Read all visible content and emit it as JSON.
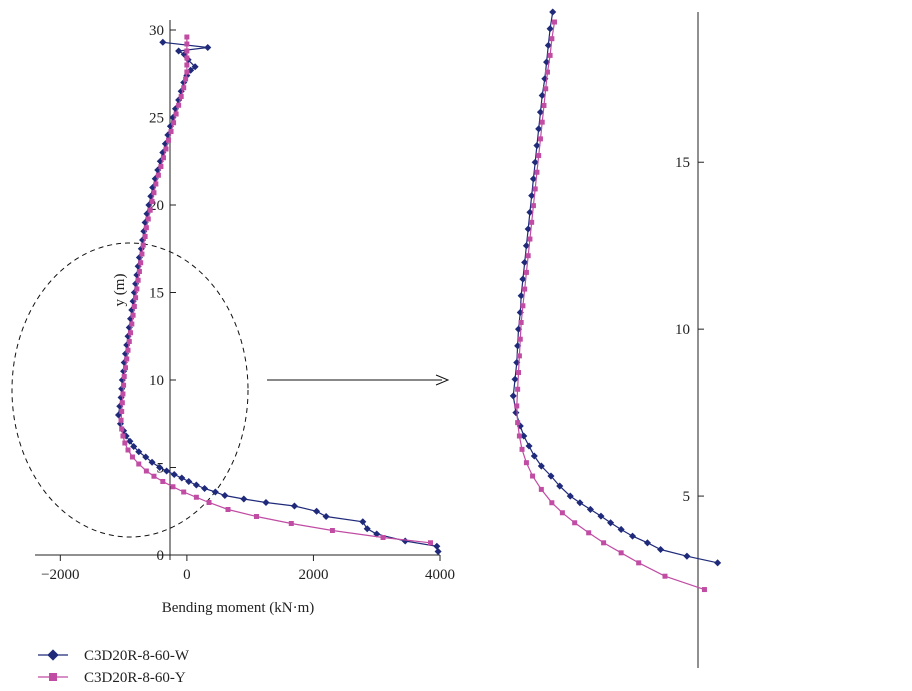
{
  "chart_data": [
    {
      "panel": "full",
      "type": "line",
      "xlabel": "Bending moment (kN·m)",
      "ylabel": "y (m)",
      "xlim": [
        -2400,
        4000
      ],
      "ylim": [
        0,
        30
      ],
      "xticks": [
        -2000,
        0,
        2000,
        4000
      ],
      "xtick_labels": [
        "−2000",
        "0",
        "2000",
        "4000"
      ],
      "yticks": [
        0,
        5,
        10,
        15,
        20,
        25,
        30
      ],
      "ytick_labels": [
        "0",
        "5",
        "10",
        "15",
        "20",
        "25",
        "30"
      ],
      "grid": false,
      "legend_position": "bottom-left",
      "annotation": "dashed ellipse marks the zoomed region, arrow points to the enlarged view",
      "series": [
        {
          "name": "C3D20R-8-60-W",
          "color": "#1f2a7a",
          "marker": "diamond",
          "points": [
            [
              3970,
              0.2
            ],
            [
              3950,
              0.5
            ],
            [
              3450,
              0.8
            ],
            [
              3000,
              1.2
            ],
            [
              2850,
              1.5
            ],
            [
              2780,
              1.9
            ],
            [
              2200,
              2.2
            ],
            [
              2050,
              2.5
            ],
            [
              1700,
              2.8
            ],
            [
              1250,
              3.0
            ],
            [
              900,
              3.2
            ],
            [
              600,
              3.4
            ],
            [
              450,
              3.6
            ],
            [
              280,
              3.8
            ],
            [
              150,
              4.0
            ],
            [
              30,
              4.2
            ],
            [
              -80,
              4.4
            ],
            [
              -200,
              4.6
            ],
            [
              -320,
              4.8
            ],
            [
              -430,
              5.0
            ],
            [
              -550,
              5.3
            ],
            [
              -650,
              5.6
            ],
            [
              -760,
              5.9
            ],
            [
              -840,
              6.2
            ],
            [
              -900,
              6.5
            ],
            [
              -960,
              6.8
            ],
            [
              -1000,
              7.1
            ],
            [
              -1050,
              7.5
            ],
            [
              -1080,
              8.0
            ],
            [
              -1060,
              8.5
            ],
            [
              -1040,
              9.0
            ],
            [
              -1030,
              9.5
            ],
            [
              -1020,
              10.0
            ],
            [
              -1000,
              10.5
            ],
            [
              -990,
              11.0
            ],
            [
              -970,
              11.5
            ],
            [
              -950,
              12.0
            ],
            [
              -930,
              12.5
            ],
            [
              -910,
              13.0
            ],
            [
              -890,
              13.5
            ],
            [
              -870,
              14.0
            ],
            [
              -850,
              14.5
            ],
            [
              -830,
              15.0
            ],
            [
              -810,
              15.5
            ],
            [
              -790,
              16.0
            ],
            [
              -770,
              16.5
            ],
            [
              -750,
              17.0
            ],
            [
              -720,
              17.5
            ],
            [
              -700,
              18.0
            ],
            [
              -680,
              18.5
            ],
            [
              -660,
              19.0
            ],
            [
              -630,
              19.5
            ],
            [
              -600,
              20.0
            ],
            [
              -570,
              20.5
            ],
            [
              -540,
              21.0
            ],
            [
              -500,
              21.5
            ],
            [
              -460,
              22.0
            ],
            [
              -420,
              22.5
            ],
            [
              -380,
              23.0
            ],
            [
              -340,
              23.5
            ],
            [
              -300,
              24.0
            ],
            [
              -260,
              24.5
            ],
            [
              -220,
              25.0
            ],
            [
              -180,
              25.5
            ],
            [
              -130,
              26.0
            ],
            [
              -90,
              26.5
            ],
            [
              -50,
              27.0
            ],
            [
              0,
              27.4
            ],
            [
              60,
              27.7
            ],
            [
              130,
              27.9
            ],
            [
              20,
              28.3
            ],
            [
              -40,
              28.6
            ],
            [
              -130,
              28.8
            ],
            [
              330,
              29.0
            ],
            [
              -380,
              29.3
            ]
          ]
        },
        {
          "name": "C3D20R-8-60-Y",
          "color": "#c04ca4",
          "marker": "square",
          "points": [
            [
              3850,
              0.7
            ],
            [
              3100,
              1.0
            ],
            [
              2300,
              1.4
            ],
            [
              1650,
              1.8
            ],
            [
              1100,
              2.2
            ],
            [
              650,
              2.6
            ],
            [
              350,
              3.0
            ],
            [
              150,
              3.3
            ],
            [
              -50,
              3.6
            ],
            [
              -220,
              3.9
            ],
            [
              -380,
              4.2
            ],
            [
              -520,
              4.5
            ],
            [
              -640,
              4.8
            ],
            [
              -760,
              5.2
            ],
            [
              -860,
              5.6
            ],
            [
              -930,
              6.0
            ],
            [
              -980,
              6.4
            ],
            [
              -1010,
              6.8
            ],
            [
              -1030,
              7.2
            ],
            [
              -1040,
              7.7
            ],
            [
              -1030,
              8.2
            ],
            [
              -1020,
              8.7
            ],
            [
              -1010,
              9.2
            ],
            [
              -1000,
              9.7
            ],
            [
              -990,
              10.2
            ],
            [
              -970,
              10.7
            ],
            [
              -950,
              11.2
            ],
            [
              -930,
              11.7
            ],
            [
              -910,
              12.2
            ],
            [
              -890,
              12.7
            ],
            [
              -870,
              13.2
            ],
            [
              -850,
              13.7
            ],
            [
              -830,
              14.2
            ],
            [
              -810,
              14.7
            ],
            [
              -790,
              15.2
            ],
            [
              -770,
              15.7
            ],
            [
              -750,
              16.2
            ],
            [
              -730,
              16.7
            ],
            [
              -710,
              17.2
            ],
            [
              -690,
              17.7
            ],
            [
              -660,
              18.2
            ],
            [
              -640,
              18.7
            ],
            [
              -610,
              19.2
            ],
            [
              -580,
              19.7
            ],
            [
              -550,
              20.2
            ],
            [
              -520,
              20.7
            ],
            [
              -490,
              21.2
            ],
            [
              -450,
              21.7
            ],
            [
              -410,
              22.2
            ],
            [
              -370,
              22.7
            ],
            [
              -330,
              23.2
            ],
            [
              -290,
              23.7
            ],
            [
              -250,
              24.2
            ],
            [
              -210,
              24.7
            ],
            [
              -170,
              25.2
            ],
            [
              -130,
              25.7
            ],
            [
              -90,
              26.2
            ],
            [
              -50,
              26.7
            ],
            [
              -20,
              27.2
            ],
            [
              0,
              27.6
            ],
            [
              0,
              28.0
            ],
            [
              0,
              28.4
            ],
            [
              0,
              28.8
            ],
            [
              0,
              29.2
            ],
            [
              0,
              29.6
            ]
          ]
        }
      ]
    },
    {
      "panel": "zoom",
      "type": "line",
      "xlabel": "",
      "ylabel": "",
      "xlim": [
        -1140,
        1300
      ],
      "ylim": [
        0,
        19.5
      ],
      "yticks": [
        5,
        10,
        15
      ],
      "ytick_labels": [
        "5",
        "10",
        "15"
      ],
      "grid": false,
      "series_ref": "same two series as the full panel, zoomed on y ≤ 19.5 m"
    }
  ],
  "legend": [
    {
      "label": "C3D20R-8-60-W",
      "color": "#1f2a7a",
      "marker": "diamond"
    },
    {
      "label": "C3D20R-8-60-Y",
      "color": "#c04ca4",
      "marker": "square"
    }
  ]
}
